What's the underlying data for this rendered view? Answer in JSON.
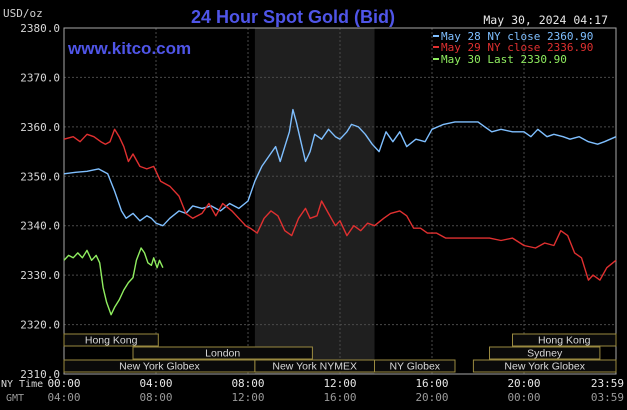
{
  "chart_data": {
    "type": "line",
    "title": "24 Hour Spot Gold (Bid)",
    "site": "www.kitco.com",
    "timestamp": "May 30, 2024 04:17",
    "ylabel": "USD/oz",
    "ylim": [
      2310,
      2380
    ],
    "yticks": [
      "2380.0",
      "2370.0",
      "2360.0",
      "2350.0",
      "2340.0",
      "2330.0",
      "2320.0",
      "2310.0"
    ],
    "ytick_values": [
      2380,
      2370,
      2360,
      2350,
      2340,
      2330,
      2320,
      2310
    ],
    "xlim": [
      0,
      24
    ],
    "row_labels": [
      "NY Time",
      "GMT"
    ],
    "x_ticks_ny": [
      {
        "h": 0,
        "label": "00:00"
      },
      {
        "h": 4,
        "label": "04:00"
      },
      {
        "h": 8,
        "label": "08:00"
      },
      {
        "h": 12,
        "label": "12:00"
      },
      {
        "h": 16,
        "label": "16:00"
      },
      {
        "h": 20,
        "label": "20:00"
      },
      {
        "h": 24,
        "label": "23:59"
      }
    ],
    "x_ticks_gmt": [
      {
        "h": 0,
        "label": "04:00"
      },
      {
        "h": 4,
        "label": "08:00"
      },
      {
        "h": 8,
        "label": "12:00"
      },
      {
        "h": 12,
        "label": "16:00"
      },
      {
        "h": 16,
        "label": "20:00"
      },
      {
        "h": 20,
        "label": "00:00"
      },
      {
        "h": 24,
        "label": "03:59"
      }
    ],
    "shaded_hours": [
      8.3,
      13.5
    ],
    "grid": true,
    "legend_placement": "top-right",
    "series": [
      {
        "name": "May 28 NY close 2360.90",
        "color": "#7fbfff",
        "points": [
          [
            0,
            2350.5
          ],
          [
            0.5,
            2350.8
          ],
          [
            1,
            2351
          ],
          [
            1.5,
            2351.5
          ],
          [
            1.9,
            2350.5
          ],
          [
            2.2,
            2347
          ],
          [
            2.5,
            2343
          ],
          [
            2.7,
            2341.5
          ],
          [
            3,
            2342.5
          ],
          [
            3.3,
            2341
          ],
          [
            3.6,
            2342
          ],
          [
            3.8,
            2341.5
          ],
          [
            4,
            2340.5
          ],
          [
            4.3,
            2340
          ],
          [
            4.6,
            2341.5
          ],
          [
            5,
            2343
          ],
          [
            5.3,
            2342.5
          ],
          [
            5.6,
            2344
          ],
          [
            6,
            2343.5
          ],
          [
            6.4,
            2344
          ],
          [
            6.8,
            2343
          ],
          [
            7.2,
            2344.5
          ],
          [
            7.6,
            2343.5
          ],
          [
            8,
            2345
          ],
          [
            8.3,
            2349
          ],
          [
            8.6,
            2352
          ],
          [
            8.9,
            2354
          ],
          [
            9.2,
            2356
          ],
          [
            9.4,
            2353
          ],
          [
            9.6,
            2356
          ],
          [
            9.8,
            2359
          ],
          [
            9.95,
            2363.5
          ],
          [
            10.1,
            2361
          ],
          [
            10.3,
            2357
          ],
          [
            10.5,
            2353
          ],
          [
            10.7,
            2355
          ],
          [
            10.9,
            2358.5
          ],
          [
            11.2,
            2357.5
          ],
          [
            11.5,
            2359.5
          ],
          [
            11.8,
            2358
          ],
          [
            12,
            2357.5
          ],
          [
            12.3,
            2359
          ],
          [
            12.5,
            2360.5
          ],
          [
            12.8,
            2360
          ],
          [
            13.1,
            2358.5
          ],
          [
            13.4,
            2356.5
          ],
          [
            13.7,
            2355
          ],
          [
            14,
            2359
          ],
          [
            14.3,
            2357
          ],
          [
            14.6,
            2359
          ],
          [
            14.9,
            2356
          ],
          [
            15.3,
            2357.5
          ],
          [
            15.7,
            2357
          ],
          [
            16,
            2359.5
          ],
          [
            16.5,
            2360.5
          ],
          [
            17,
            2361
          ],
          [
            17.5,
            2361
          ],
          [
            18,
            2361
          ],
          [
            18.3,
            2360
          ],
          [
            18.6,
            2359
          ],
          [
            19,
            2359.5
          ],
          [
            19.5,
            2359
          ],
          [
            20,
            2359
          ],
          [
            20.3,
            2358
          ],
          [
            20.6,
            2359.5
          ],
          [
            21,
            2358
          ],
          [
            21.3,
            2358.5
          ],
          [
            21.7,
            2358
          ],
          [
            22,
            2357.5
          ],
          [
            22.4,
            2358
          ],
          [
            22.8,
            2357
          ],
          [
            23.2,
            2356.5
          ],
          [
            23.5,
            2357
          ],
          [
            24,
            2358
          ]
        ]
      },
      {
        "name": "May 29 NY close 2336.90",
        "color": "#e03030",
        "points": [
          [
            0,
            2357.5
          ],
          [
            0.4,
            2358
          ],
          [
            0.7,
            2357
          ],
          [
            1,
            2358.5
          ],
          [
            1.3,
            2358
          ],
          [
            1.6,
            2357
          ],
          [
            1.8,
            2356.5
          ],
          [
            2,
            2357
          ],
          [
            2.2,
            2359.5
          ],
          [
            2.4,
            2358
          ],
          [
            2.6,
            2356
          ],
          [
            2.8,
            2353
          ],
          [
            3,
            2354.5
          ],
          [
            3.3,
            2352
          ],
          [
            3.6,
            2351.5
          ],
          [
            3.9,
            2352
          ],
          [
            4.2,
            2349
          ],
          [
            4.6,
            2348
          ],
          [
            5,
            2346
          ],
          [
            5.3,
            2342.5
          ],
          [
            5.6,
            2341.5
          ],
          [
            6,
            2342.5
          ],
          [
            6.3,
            2344.5
          ],
          [
            6.6,
            2342
          ],
          [
            6.9,
            2344.5
          ],
          [
            7.3,
            2343
          ],
          [
            7.6,
            2341.5
          ],
          [
            7.9,
            2340
          ],
          [
            8.1,
            2339.5
          ],
          [
            8.4,
            2338.5
          ],
          [
            8.7,
            2341.5
          ],
          [
            9,
            2343
          ],
          [
            9.3,
            2342
          ],
          [
            9.6,
            2339
          ],
          [
            9.9,
            2338
          ],
          [
            10.2,
            2341.5
          ],
          [
            10.5,
            2343.5
          ],
          [
            10.7,
            2341.5
          ],
          [
            11,
            2342
          ],
          [
            11.2,
            2345
          ],
          [
            11.5,
            2342.5
          ],
          [
            11.8,
            2340
          ],
          [
            12,
            2341
          ],
          [
            12.3,
            2338
          ],
          [
            12.6,
            2340
          ],
          [
            12.9,
            2339
          ],
          [
            13.2,
            2340.5
          ],
          [
            13.5,
            2340
          ],
          [
            13.9,
            2341.5
          ],
          [
            14.2,
            2342.5
          ],
          [
            14.6,
            2343
          ],
          [
            14.9,
            2342
          ],
          [
            15.2,
            2339.5
          ],
          [
            15.5,
            2339.5
          ],
          [
            15.8,
            2338.5
          ],
          [
            16.2,
            2338.5
          ],
          [
            16.6,
            2337.5
          ],
          [
            17,
            2337.5
          ],
          [
            17.5,
            2337.5
          ],
          [
            18,
            2337.5
          ],
          [
            18.5,
            2337.5
          ],
          [
            19,
            2337
          ],
          [
            19.5,
            2337.5
          ],
          [
            20,
            2336
          ],
          [
            20.5,
            2335.5
          ],
          [
            20.9,
            2336.5
          ],
          [
            21.3,
            2336
          ],
          [
            21.6,
            2339
          ],
          [
            21.9,
            2338
          ],
          [
            22.2,
            2334.5
          ],
          [
            22.5,
            2333.5
          ],
          [
            22.8,
            2329
          ],
          [
            23,
            2330
          ],
          [
            23.3,
            2329
          ],
          [
            23.6,
            2331.5
          ],
          [
            24,
            2333
          ]
        ]
      },
      {
        "name": "May 30 Last 2330.90",
        "color": "#90ee60",
        "points": [
          [
            0,
            2333
          ],
          [
            0.2,
            2334
          ],
          [
            0.4,
            2333.5
          ],
          [
            0.6,
            2334.5
          ],
          [
            0.8,
            2333.5
          ],
          [
            1,
            2335
          ],
          [
            1.2,
            2333
          ],
          [
            1.4,
            2334
          ],
          [
            1.55,
            2332.5
          ],
          [
            1.7,
            2327.5
          ],
          [
            1.85,
            2324.5
          ],
          [
            2.05,
            2322
          ],
          [
            2.2,
            2323.5
          ],
          [
            2.4,
            2325
          ],
          [
            2.6,
            2327
          ],
          [
            2.8,
            2328.5
          ],
          [
            3,
            2329.5
          ],
          [
            3.15,
            2333
          ],
          [
            3.35,
            2335.5
          ],
          [
            3.5,
            2334.5
          ],
          [
            3.65,
            2332.5
          ],
          [
            3.8,
            2332
          ],
          [
            3.9,
            2333.5
          ],
          [
            4.05,
            2331.5
          ],
          [
            4.15,
            2333
          ],
          [
            4.3,
            2331.5
          ]
        ]
      }
    ],
    "markets": {
      "colors": {
        "fill": "#0a0a0a",
        "stroke": "#9a8a40",
        "text": "#d8d8d8"
      },
      "bars": [
        {
          "label": "Hong Kong",
          "start": 0,
          "end": 4.1,
          "row": 0
        },
        {
          "label": "Hong Kong",
          "start": 19.5,
          "end": 24,
          "row": 0
        },
        {
          "label": "London",
          "start": 3,
          "end": 10.8,
          "row": 1
        },
        {
          "label": "Sydney",
          "start": 18.5,
          "end": 23.3,
          "row": 1
        },
        {
          "label": "New York Globex",
          "start": 0,
          "end": 8.3,
          "row": 2
        },
        {
          "label": "New York NYMEX",
          "start": 8.3,
          "end": 13.5,
          "row": 2
        },
        {
          "label": "NY Globex",
          "start": 13.5,
          "end": 17,
          "row": 2
        },
        {
          "label": "New York Globex",
          "start": 17.8,
          "end": 24,
          "row": 2
        }
      ]
    }
  }
}
